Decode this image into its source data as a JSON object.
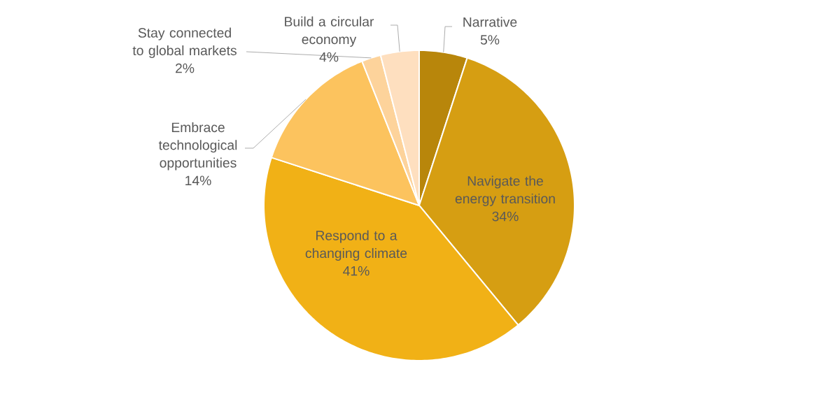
{
  "chart_data": {
    "type": "pie",
    "categories": [
      "Narrative",
      "Navigate the energy transition",
      "Respond to a changing climate",
      "Embrace technological opportunities",
      "Stay connected to global markets",
      "Build a circular economy"
    ],
    "values": [
      5,
      34,
      41,
      14,
      2,
      4
    ],
    "value_labels": [
      "5%",
      "34%",
      "41%",
      "14%",
      "2%",
      "4%"
    ],
    "colors": [
      "#b8860b",
      "#d69e12",
      "#f1b116",
      "#fcc35e",
      "#fdd39b",
      "#fedfbf"
    ]
  }
}
